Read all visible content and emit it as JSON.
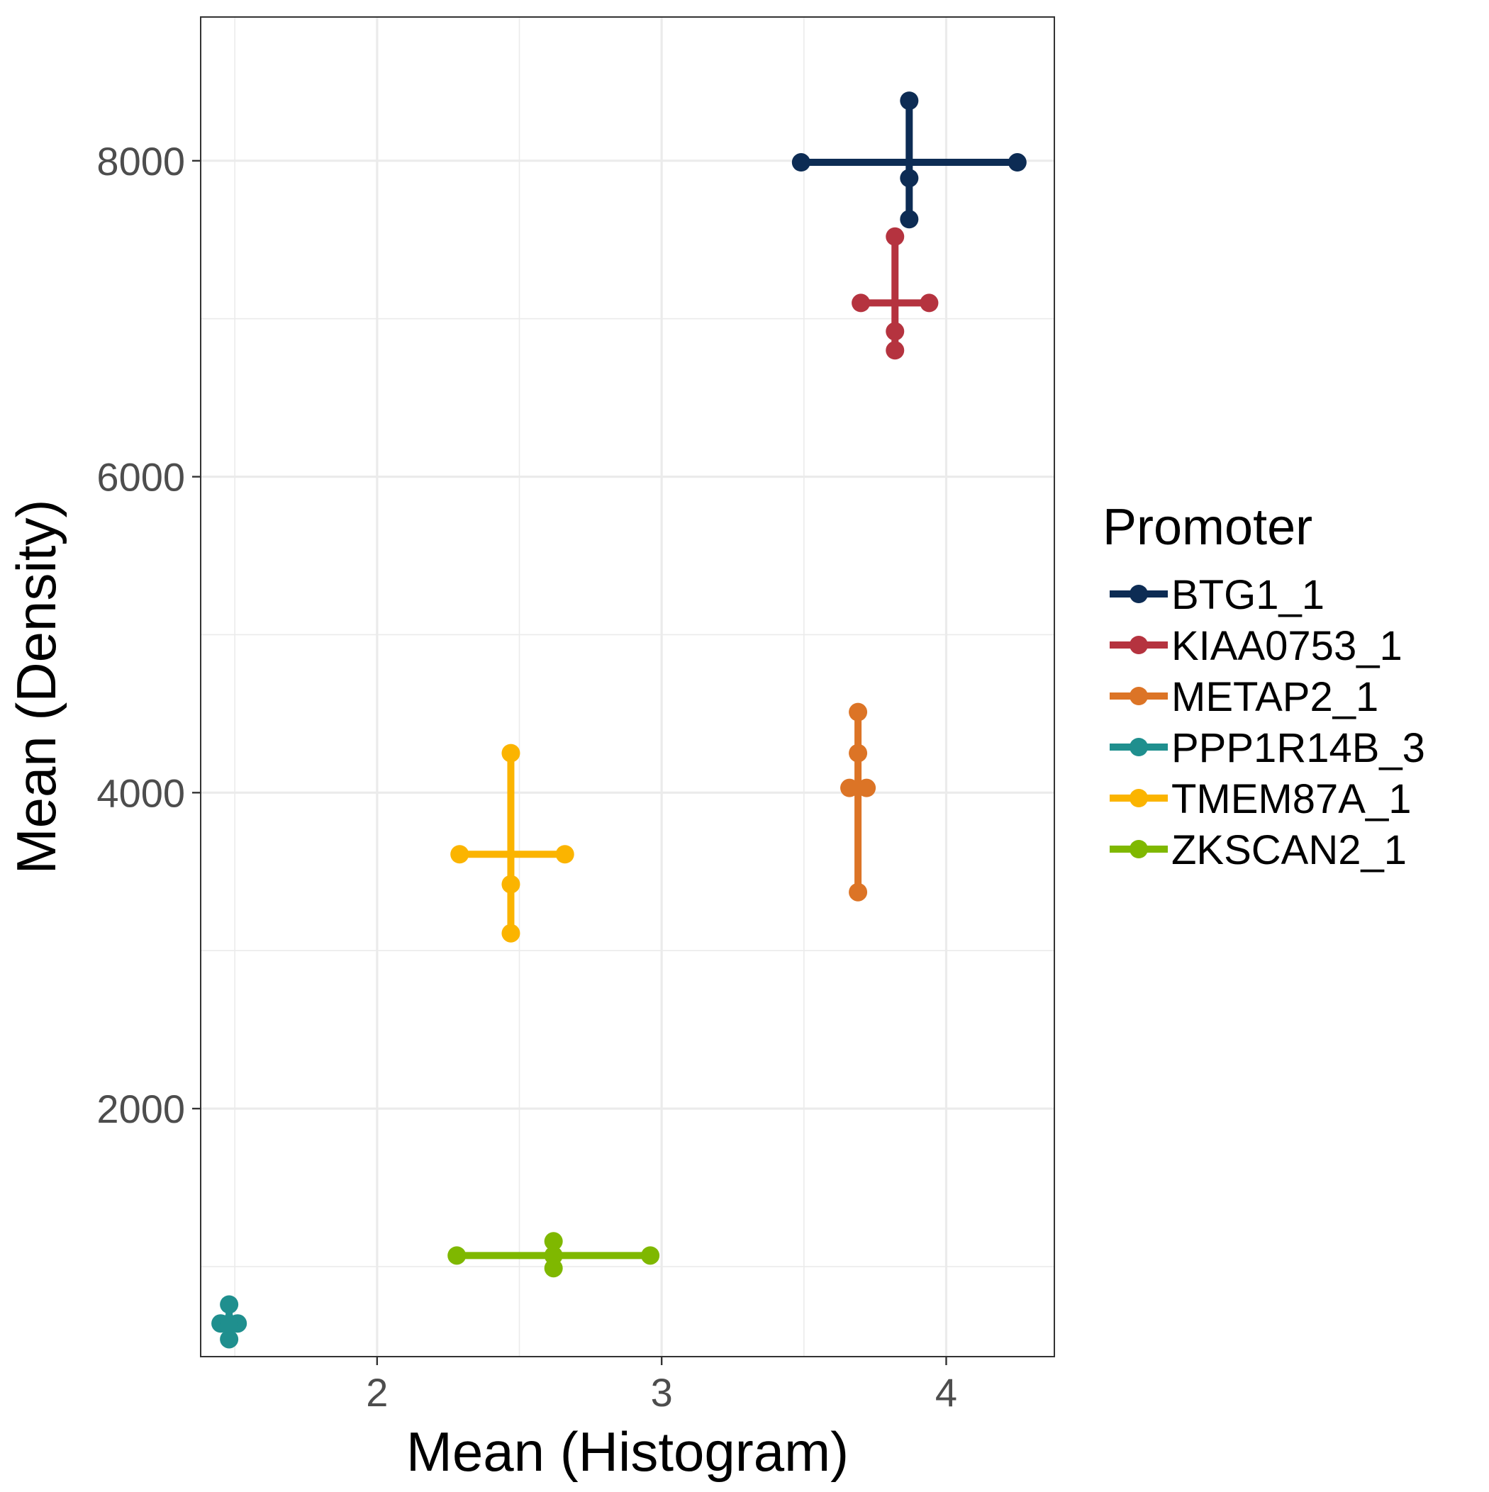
{
  "chart_data": {
    "type": "scatter",
    "xlabel": "Mean (Histogram)",
    "ylabel": "Mean (Density)",
    "xlim": [
      1.38,
      4.38
    ],
    "ylim": [
      430,
      8910
    ],
    "x_ticks": [
      2,
      3,
      4
    ],
    "y_ticks": [
      2000,
      4000,
      6000,
      8000
    ],
    "x_tick_labels": [
      "2",
      "3",
      "4"
    ],
    "y_tick_labels": [
      "2000",
      "4000",
      "6000",
      "8000"
    ],
    "grid": true,
    "legend_position": "right",
    "legend_title": "Promoter",
    "series": [
      {
        "name": "BTG1_1",
        "color": "#0d2c54",
        "center": {
          "x": 3.87,
          "y": 7990
        },
        "x_range": [
          3.49,
          4.25
        ],
        "y_range": [
          7630,
          8380
        ],
        "mean_point": {
          "x": 3.87,
          "y": 7890
        }
      },
      {
        "name": "KIAA0753_1",
        "color": "#b5333f",
        "center": {
          "x": 3.82,
          "y": 7100
        },
        "x_range": [
          3.7,
          3.94
        ],
        "y_range": [
          6800,
          7520
        ],
        "mean_point": {
          "x": 3.82,
          "y": 6920
        }
      },
      {
        "name": "METAP2_1",
        "color": "#dc7426",
        "center": {
          "x": 3.69,
          "y": 4030
        },
        "x_range": [
          3.66,
          3.72
        ],
        "y_range": [
          3370,
          4510
        ],
        "mean_point": {
          "x": 3.69,
          "y": 4250
        }
      },
      {
        "name": "PPP1R14B_3",
        "color": "#1f8f8e",
        "center": {
          "x": 1.48,
          "y": 640
        },
        "x_range": [
          1.45,
          1.51
        ],
        "y_range": [
          540,
          760
        ],
        "mean_point": {
          "x": 1.48,
          "y": 640
        }
      },
      {
        "name": "TMEM87A_1",
        "color": "#fbb400",
        "center": {
          "x": 2.47,
          "y": 3610
        },
        "x_range": [
          2.29,
          2.66
        ],
        "y_range": [
          3110,
          4250
        ],
        "mean_point": {
          "x": 2.47,
          "y": 3420
        }
      },
      {
        "name": "ZKSCAN2_1",
        "color": "#7fb800",
        "center": {
          "x": 2.62,
          "y": 1070
        },
        "x_range": [
          2.28,
          2.96
        ],
        "y_range": [
          990,
          1160
        ],
        "mean_point": {
          "x": 2.62,
          "y": 1070
        }
      }
    ]
  }
}
